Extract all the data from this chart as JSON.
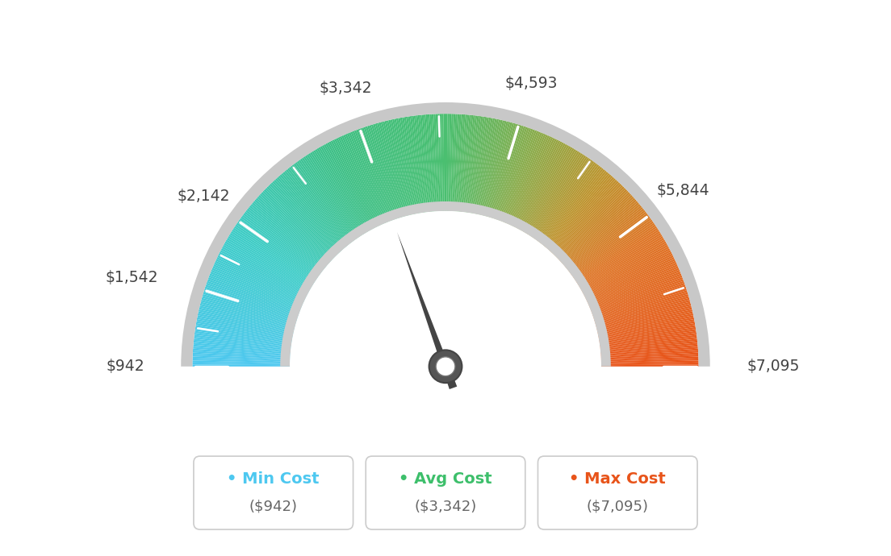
{
  "min_val": 942,
  "max_val": 7095,
  "avg_val": 3342,
  "label_values": [
    942,
    1542,
    2142,
    3342,
    4593,
    5844,
    7095
  ],
  "label_strings": [
    "$942",
    "$1,542",
    "$2,142",
    "$3,342",
    "$4,593",
    "$5,844",
    "$7,095"
  ],
  "min_cost_label": "Min Cost",
  "avg_cost_label": "Avg Cost",
  "max_cost_label": "Max Cost",
  "min_cost_val": "($942)",
  "avg_cost_val": "($3,342)",
  "max_cost_val": "($7,095)",
  "min_color": "#4DC8F0",
  "avg_color": "#3DBF6B",
  "max_color": "#E8541A",
  "needle_color": "#444444",
  "background_color": "#ffffff",
  "color_stops": [
    [
      0.0,
      [
        0.302,
        0.784,
        0.941
      ]
    ],
    [
      0.18,
      [
        0.239,
        0.8,
        0.78
      ]
    ],
    [
      0.35,
      [
        0.239,
        0.749,
        0.518
      ]
    ],
    [
      0.5,
      [
        0.29,
        0.749,
        0.439
      ]
    ],
    [
      0.62,
      [
        0.541,
        0.671,
        0.29
      ]
    ],
    [
      0.72,
      [
        0.741,
        0.58,
        0.18
      ]
    ],
    [
      0.82,
      [
        0.871,
        0.459,
        0.149
      ]
    ],
    [
      1.0,
      [
        0.91,
        0.329,
        0.102
      ]
    ]
  ]
}
